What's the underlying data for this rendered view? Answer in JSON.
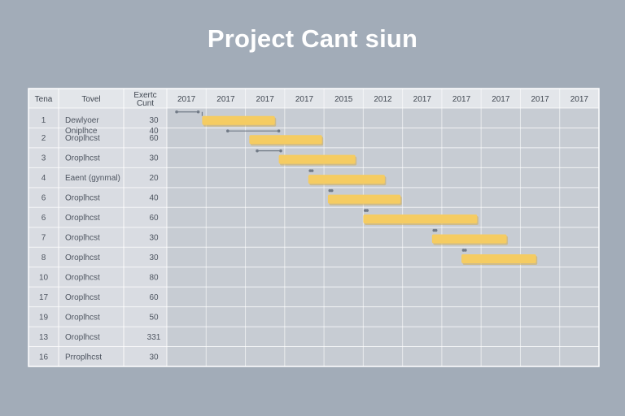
{
  "chart_data": {
    "type": "gantt",
    "title": "Project Cant siun",
    "columns": [
      "Tena",
      "Tovel",
      "Exertc Cunt"
    ],
    "timeline": [
      "2017",
      "2017",
      "2017",
      "2017",
      "2015",
      "2012",
      "2017",
      "2017",
      "2017",
      "2017",
      "2017"
    ],
    "rows": [
      {
        "id": "1",
        "name": [
          "Dewlyoer",
          "Oniplhce"
        ],
        "count": [
          "30",
          "40"
        ],
        "start": 0.9,
        "end": 2.75,
        "dep_start": 0.25,
        "dep_end": 0.8
      },
      {
        "id": "2",
        "name": [
          "Oroplhcst"
        ],
        "count": [
          "60"
        ],
        "start": 2.1,
        "end": 3.95,
        "dep_start": 1.55,
        "dep_end": 2.85
      },
      {
        "id": "3",
        "name": [
          "Oroplhcst"
        ],
        "count": [
          "30"
        ],
        "start": 2.85,
        "end": 4.8,
        "dep_start": 2.3,
        "dep_end": 2.9
      },
      {
        "id": "4",
        "name": [
          "Eaent (gynmal)"
        ],
        "count": [
          "20"
        ],
        "start": 3.6,
        "end": 5.55,
        "dep_start": 3.65,
        "dep_end": 3.7
      },
      {
        "id": "6",
        "name": [
          "Oroplhcst"
        ],
        "count": [
          "40"
        ],
        "start": 4.1,
        "end": 5.95,
        "dep_start": 4.15,
        "dep_end": 4.2
      },
      {
        "id": "6",
        "name": [
          "Oroplhcst"
        ],
        "count": [
          "60"
        ],
        "start": 5.0,
        "end": 7.9,
        "dep_start": 5.05,
        "dep_end": 5.1
      },
      {
        "id": "7",
        "name": [
          "Oroplhcst"
        ],
        "count": [
          "30"
        ],
        "start": 6.75,
        "end": 8.65,
        "dep_start": 6.8,
        "dep_end": 6.85
      },
      {
        "id": "8",
        "name": [
          "Oroplhcst"
        ],
        "count": [
          "30"
        ],
        "start": 7.5,
        "end": 9.4,
        "dep_start": 7.55,
        "dep_end": 7.6
      },
      {
        "id": "10",
        "name": [
          "Oroplhcst"
        ],
        "count": [
          "80"
        ]
      },
      {
        "id": "17",
        "name": [
          "Oroplhcst"
        ],
        "count": [
          "60"
        ]
      },
      {
        "id": "19",
        "name": [
          "Oroplhcst"
        ],
        "count": [
          "50"
        ]
      },
      {
        "id": "13",
        "name": [
          "Oroplhcst"
        ],
        "count": [
          "331"
        ]
      },
      {
        "id": "16",
        "name": [
          "Prroplhcst"
        ],
        "count": [
          "30"
        ]
      }
    ]
  },
  "colors": {
    "background": "#a2acb8",
    "table_left": "#d9dce2",
    "header": "#e3e6ea",
    "grid_area": "#c7ccd3",
    "bar": "#f5cc62",
    "bar_shadow": "#d3ad4e",
    "dep_line": "#727b87"
  }
}
